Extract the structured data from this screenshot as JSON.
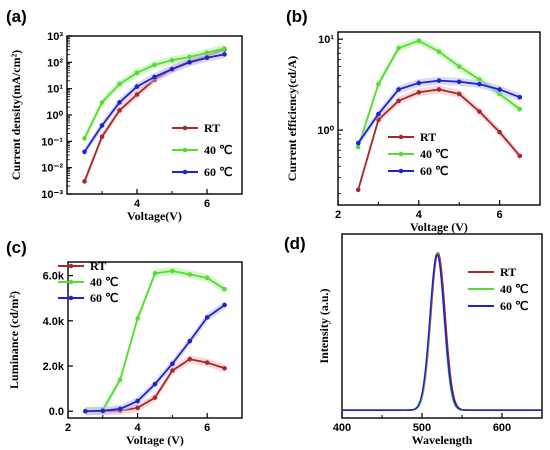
{
  "figure": {
    "colors": {
      "RT": "#a52a2a",
      "40C": "#55dd33",
      "60C": "#2222cc",
      "RT_fill": "#f4b8c0",
      "40C_fill": "#b8f0a8",
      "60C_fill": "#b8c0f4"
    }
  },
  "chart_data": [
    {
      "panel": "(a)",
      "type": "line",
      "xlabel": "Voltage(V)",
      "ylabel": "Current density(mA/cm²)",
      "yscale": "log",
      "xlim": [
        2.0,
        7.0
      ],
      "ylim": [
        0.001,
        1000
      ],
      "xticks": [
        4,
        6
      ],
      "xtick_labels": [
        "4",
        "6"
      ],
      "yticks": [
        0.001,
        0.01,
        0.1,
        1,
        10,
        100,
        1000
      ],
      "ytick_labels": [
        "10⁻³",
        "10⁻²",
        "10⁻¹",
        "10⁰",
        "10¹",
        "10²",
        "10³"
      ],
      "legend_position": "lower-right",
      "series": [
        {
          "name": "RT",
          "key": "RT",
          "x": [
            2.5,
            3.0,
            3.5,
            4.0,
            4.5,
            5.0,
            5.5,
            6.0,
            6.5
          ],
          "y": [
            0.003,
            0.15,
            1.5,
            6,
            22,
            55,
            110,
            180,
            300
          ]
        },
        {
          "name": "40 ℃",
          "key": "40C",
          "x": [
            2.5,
            3.0,
            3.5,
            4.0,
            4.5,
            5.0,
            5.5,
            6.0,
            6.5
          ],
          "y": [
            0.13,
            3,
            15,
            40,
            80,
            120,
            160,
            230,
            330
          ]
        },
        {
          "name": "60 ℃",
          "key": "60C",
          "x": [
            2.5,
            3.0,
            3.5,
            4.0,
            4.5,
            5.0,
            5.5,
            6.0,
            6.5
          ],
          "y": [
            0.04,
            0.4,
            3,
            12,
            28,
            55,
            100,
            150,
            200
          ]
        }
      ]
    },
    {
      "panel": "(b)",
      "type": "line",
      "xlabel": "Voltage (V)",
      "ylabel": "Current efficiency(cd/A)",
      "yscale": "log",
      "xlim": [
        2.0,
        7.0
      ],
      "ylim": [
        0.15,
        12
      ],
      "xticks": [
        2,
        4,
        6
      ],
      "xtick_labels": [
        "2",
        "4",
        "6"
      ],
      "yticks": [
        1,
        10
      ],
      "ytick_labels": [
        "10⁰",
        "10¹"
      ],
      "legend_position": "bottom-center",
      "series": [
        {
          "name": "RT",
          "key": "RT",
          "x": [
            2.5,
            3.0,
            3.5,
            4.0,
            4.5,
            5.0,
            5.5,
            6.0,
            6.5
          ],
          "y": [
            0.22,
            1.3,
            2.1,
            2.6,
            2.8,
            2.5,
            1.6,
            0.95,
            0.52
          ]
        },
        {
          "name": "40 ℃",
          "key": "40C",
          "x": [
            2.5,
            3.0,
            3.5,
            4.0,
            4.5,
            5.0,
            5.5,
            6.0,
            6.5
          ],
          "y": [
            0.65,
            3.2,
            8.0,
            9.6,
            7.3,
            5.0,
            3.6,
            2.5,
            1.7
          ]
        },
        {
          "name": "60 ℃",
          "key": "60C",
          "x": [
            2.5,
            3.0,
            3.5,
            4.0,
            4.5,
            5.0,
            5.5,
            6.0,
            6.5
          ],
          "y": [
            0.72,
            1.5,
            2.8,
            3.3,
            3.5,
            3.4,
            3.2,
            2.8,
            2.3
          ]
        }
      ]
    },
    {
      "panel": "(c)",
      "type": "line",
      "xlabel": "Voltage (V)",
      "ylabel": "Luminance (cd/m²)",
      "xlim": [
        2.0,
        7.0
      ],
      "ylim": [
        -300,
        6600
      ],
      "xticks": [
        2,
        4,
        6
      ],
      "xtick_labels": [
        "2",
        "4",
        "6"
      ],
      "yticks": [
        0,
        2000,
        4000,
        6000
      ],
      "ytick_labels": [
        "0.0",
        "2.0k",
        "4.0k",
        "6.0k"
      ],
      "legend_position": "top-left",
      "series": [
        {
          "name": "RT",
          "key": "RT",
          "x": [
            2.5,
            3.0,
            3.5,
            4.0,
            4.5,
            5.0,
            5.5,
            6.0,
            6.5
          ],
          "y": [
            0,
            0,
            20,
            150,
            600,
            1800,
            2300,
            2150,
            1900
          ]
        },
        {
          "name": "40 ℃",
          "key": "40C",
          "x": [
            2.5,
            3.0,
            3.5,
            4.0,
            4.5,
            5.0,
            5.5,
            6.0,
            6.5
          ],
          "y": [
            0,
            50,
            1400,
            4100,
            6100,
            6200,
            6050,
            5900,
            5400
          ]
        },
        {
          "name": "60 ℃",
          "key": "60C",
          "x": [
            2.5,
            3.0,
            3.5,
            4.0,
            4.5,
            5.0,
            5.5,
            6.0,
            6.5
          ],
          "y": [
            0,
            20,
            100,
            450,
            1200,
            2100,
            3100,
            4150,
            4700
          ]
        }
      ]
    },
    {
      "panel": "(d)",
      "type": "line",
      "xlabel": "Wavelength",
      "ylabel": "Intensity (a.u.)",
      "xlim": [
        400,
        650
      ],
      "ylim": [
        -0.05,
        1.12
      ],
      "xticks": [
        400,
        500,
        600
      ],
      "xtick_labels": [
        "400",
        "500",
        "600"
      ],
      "yticks": [],
      "ytick_labels": [],
      "legend_position": "top-right",
      "series": [
        {
          "name": "RT",
          "key": "RT",
          "peak_nm": 520,
          "fwhm_nm": 21,
          "peak": 1.0
        },
        {
          "name": "40 ℃",
          "key": "40C",
          "peak_nm": 519,
          "fwhm_nm": 20,
          "peak": 1.0
        },
        {
          "name": "60 ℃",
          "key": "60C",
          "peak_nm": 519,
          "fwhm_nm": 21,
          "peak": 0.99
        }
      ]
    }
  ]
}
